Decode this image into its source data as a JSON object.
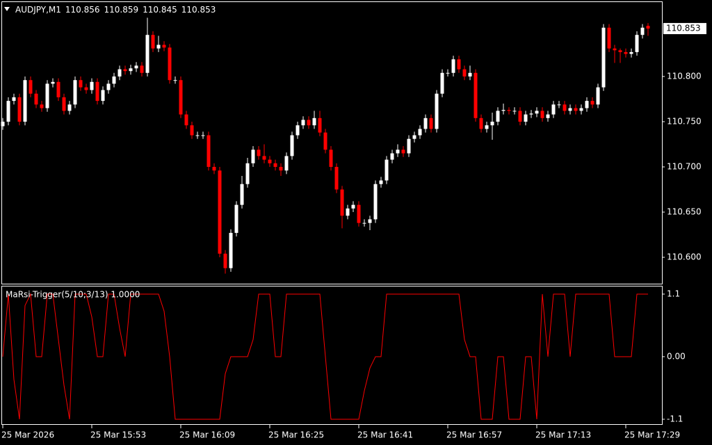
{
  "chart_data": [
    {
      "type": "candlestick",
      "title": "AUDJPY,M1",
      "last_ohlc": [
        110.856,
        110.859,
        110.845,
        110.853
      ],
      "current_price": 110.853,
      "up_color": "#ffffff",
      "down_color": "#ff0000",
      "ylim": [
        110.5708,
        110.8823
      ],
      "yticks": [
        {
          "value": 110.6,
          "label": "110.600"
        },
        {
          "value": 110.65,
          "label": "110.650"
        },
        {
          "value": 110.7,
          "label": "110.700"
        },
        {
          "value": 110.75,
          "label": "110.750"
        },
        {
          "value": 110.8,
          "label": "110.800"
        }
      ],
      "categories": [
        "25 Mar 2026",
        null,
        null,
        null,
        null,
        null,
        null,
        null,
        null,
        null,
        null,
        null,
        null,
        null,
        null,
        null,
        "25 Mar 15:53",
        null,
        null,
        null,
        null,
        null,
        null,
        null,
        null,
        null,
        null,
        null,
        null,
        null,
        null,
        null,
        "25 Mar 16:09",
        null,
        null,
        null,
        null,
        null,
        null,
        null,
        null,
        null,
        null,
        null,
        null,
        null,
        null,
        null,
        "25 Mar 16:25",
        null,
        null,
        null,
        null,
        null,
        null,
        null,
        null,
        null,
        null,
        null,
        null,
        null,
        null,
        null,
        "25 Mar 16:41",
        null,
        null,
        null,
        null,
        null,
        null,
        null,
        null,
        null,
        null,
        null,
        null,
        null,
        null,
        null,
        "25 Mar 16:57",
        null,
        null,
        null,
        null,
        null,
        null,
        null,
        null,
        null,
        null,
        null,
        null,
        null,
        null,
        null,
        "25 Mar 17:13",
        null,
        null,
        null,
        null,
        null,
        null,
        null,
        null,
        null,
        null,
        null,
        null,
        null,
        null,
        null,
        "25 Mar 17:29",
        null,
        null,
        null,
        null
      ],
      "open": [
        110.745,
        110.75,
        110.773,
        110.777,
        110.75,
        110.796,
        110.781,
        110.769,
        110.765,
        110.792,
        110.794,
        110.777,
        110.762,
        110.769,
        110.796,
        110.788,
        110.785,
        110.794,
        110.773,
        110.785,
        110.792,
        110.8,
        110.808,
        110.806,
        110.809,
        110.812,
        110.804,
        110.846,
        110.831,
        110.835,
        110.832,
        110.796,
        110.796,
        110.758,
        110.746,
        110.735,
        110.735,
        110.735,
        110.7,
        110.696,
        110.604,
        110.588,
        110.627,
        110.658,
        110.681,
        110.704,
        110.719,
        110.712,
        110.708,
        110.704,
        110.7,
        110.696,
        110.712,
        110.735,
        110.746,
        110.752,
        110.746,
        110.754,
        110.738,
        110.719,
        110.7,
        110.675,
        110.646,
        110.654,
        110.658,
        110.638,
        110.638,
        110.642,
        110.681,
        110.685,
        110.708,
        110.715,
        110.719,
        110.715,
        110.731,
        110.735,
        110.742,
        110.754,
        110.742,
        110.781,
        110.804,
        110.804,
        110.819,
        110.808,
        110.8,
        110.804,
        110.754,
        110.742,
        110.746,
        110.75,
        110.762,
        110.763,
        110.762,
        110.762,
        110.75,
        110.758,
        110.759,
        110.762,
        110.754,
        110.758,
        110.769,
        110.769,
        110.762,
        110.765,
        110.762,
        110.765,
        110.773,
        110.769,
        110.788,
        110.854,
        110.831,
        110.829,
        110.827,
        110.825,
        110.827,
        110.846,
        110.856
      ],
      "high": [
        110.754,
        110.777,
        110.781,
        110.781,
        110.8,
        110.8,
        110.785,
        110.773,
        110.796,
        110.798,
        110.798,
        110.781,
        110.773,
        110.8,
        110.8,
        110.792,
        110.798,
        110.798,
        110.789,
        110.796,
        110.804,
        110.812,
        110.812,
        110.813,
        110.816,
        110.816,
        110.865,
        110.85,
        110.845,
        110.839,
        110.836,
        110.8,
        110.8,
        110.762,
        110.75,
        110.739,
        110.739,
        110.739,
        110.704,
        110.7,
        110.608,
        110.631,
        110.662,
        110.69,
        110.71,
        110.723,
        110.723,
        110.725,
        110.712,
        110.708,
        110.704,
        110.716,
        110.739,
        110.75,
        110.756,
        110.756,
        110.762,
        110.762,
        110.742,
        110.723,
        110.704,
        110.679,
        110.658,
        110.662,
        110.662,
        110.642,
        110.646,
        110.685,
        110.689,
        110.712,
        110.719,
        110.725,
        110.723,
        110.735,
        110.739,
        110.746,
        110.758,
        110.758,
        110.785,
        110.808,
        110.808,
        110.823,
        110.823,
        110.812,
        110.812,
        110.808,
        110.758,
        110.75,
        110.76,
        110.766,
        110.77,
        110.766,
        110.766,
        110.766,
        110.762,
        110.763,
        110.766,
        110.766,
        110.762,
        110.773,
        110.773,
        110.773,
        110.769,
        110.769,
        110.769,
        110.777,
        110.777,
        110.792,
        110.858,
        110.858,
        110.835,
        110.831,
        110.831,
        110.831,
        110.85,
        110.858,
        110.859
      ],
      "low": [
        110.741,
        110.746,
        110.769,
        110.746,
        110.746,
        110.777,
        110.765,
        110.761,
        110.761,
        110.788,
        110.773,
        110.758,
        110.758,
        110.765,
        110.784,
        110.781,
        110.781,
        110.769,
        110.769,
        110.781,
        110.788,
        110.796,
        110.802,
        110.802,
        110.805,
        110.8,
        110.8,
        110.827,
        110.827,
        110.828,
        110.792,
        110.792,
        110.754,
        110.742,
        110.731,
        110.731,
        110.731,
        110.696,
        110.692,
        110.6,
        110.582,
        110.584,
        110.623,
        110.654,
        110.677,
        110.7,
        110.708,
        110.704,
        110.7,
        110.696,
        110.69,
        110.692,
        110.708,
        110.731,
        110.742,
        110.742,
        110.742,
        110.734,
        110.715,
        110.696,
        110.671,
        110.632,
        110.642,
        110.65,
        110.634,
        110.634,
        110.63,
        110.638,
        110.677,
        110.681,
        110.704,
        110.711,
        110.711,
        110.711,
        110.727,
        110.731,
        110.738,
        110.738,
        110.738,
        110.777,
        110.8,
        110.8,
        110.804,
        110.796,
        110.796,
        110.75,
        110.738,
        110.738,
        110.73,
        110.746,
        110.758,
        110.758,
        110.758,
        110.746,
        110.746,
        110.754,
        110.755,
        110.75,
        110.75,
        110.754,
        110.765,
        110.758,
        110.758,
        110.758,
        110.758,
        110.761,
        110.765,
        110.765,
        110.784,
        110.827,
        110.815,
        110.815,
        110.821,
        110.821,
        110.823,
        110.842,
        110.845
      ],
      "close": [
        110.75,
        110.773,
        110.777,
        110.75,
        110.796,
        110.781,
        110.769,
        110.765,
        110.792,
        110.794,
        110.777,
        110.762,
        110.769,
        110.796,
        110.788,
        110.785,
        110.794,
        110.773,
        110.785,
        110.792,
        110.8,
        110.808,
        110.806,
        110.809,
        110.812,
        110.804,
        110.846,
        110.831,
        110.835,
        110.832,
        110.796,
        110.796,
        110.758,
        110.746,
        110.735,
        110.735,
        110.735,
        110.7,
        110.696,
        110.604,
        110.588,
        110.627,
        110.658,
        110.681,
        110.704,
        110.719,
        110.712,
        110.708,
        110.704,
        110.7,
        110.696,
        110.712,
        110.735,
        110.746,
        110.752,
        110.746,
        110.754,
        110.738,
        110.719,
        110.7,
        110.675,
        110.646,
        110.654,
        110.658,
        110.638,
        110.638,
        110.642,
        110.681,
        110.685,
        110.708,
        110.715,
        110.719,
        110.715,
        110.731,
        110.735,
        110.742,
        110.754,
        110.742,
        110.781,
        110.804,
        110.804,
        110.819,
        110.808,
        110.8,
        110.804,
        110.754,
        110.742,
        110.746,
        110.75,
        110.762,
        110.763,
        110.762,
        110.762,
        110.75,
        110.758,
        110.759,
        110.762,
        110.754,
        110.758,
        110.769,
        110.769,
        110.762,
        110.765,
        110.762,
        110.765,
        110.773,
        110.769,
        110.788,
        110.854,
        110.831,
        110.829,
        110.827,
        110.825,
        110.827,
        110.846,
        110.854,
        110.853
      ]
    },
    {
      "type": "line",
      "title": "MaRsi-Trigger(5/10;3/13) 1.0000",
      "color": "#ff0000",
      "ylim": [
        -1.186,
        1.234
      ],
      "yticks": [
        1.1,
        {
          "value": 0,
          "label": "0.00"
        },
        -1.1
      ],
      "values": [
        0,
        1.1,
        -0.4,
        -1.1,
        0.9,
        1.1,
        0,
        0,
        1.1,
        1.1,
        0.3,
        -0.5,
        -1.1,
        1.1,
        1.1,
        1.1,
        0.7,
        0,
        0,
        1.1,
        1.1,
        0.5,
        0,
        1.1,
        1.1,
        1.1,
        1.1,
        1.1,
        1.1,
        0.8,
        0,
        -1.1,
        -1.1,
        -1.1,
        -1.1,
        -1.1,
        -1.1,
        -1.1,
        -1.1,
        -1.1,
        -0.3,
        0,
        0,
        0,
        0,
        0.3,
        1.1,
        1.1,
        1.1,
        0,
        0,
        1.1,
        1.1,
        1.1,
        1.1,
        1.1,
        1.1,
        1.1,
        0,
        -1.1,
        -1.1,
        -1.1,
        -1.1,
        -1.1,
        -1.1,
        -0.6,
        -0.2,
        0,
        0,
        1.1,
        1.1,
        1.1,
        1.1,
        1.1,
        1.1,
        1.1,
        1.1,
        1.1,
        1.1,
        1.1,
        1.1,
        1.1,
        1.1,
        0.3,
        0,
        0,
        -1.1,
        -1.1,
        -1.1,
        0,
        0,
        -1.1,
        -1.1,
        -1.1,
        0,
        0,
        -1.1,
        1.1,
        0,
        1.1,
        1.1,
        1.1,
        0,
        1.1,
        1.1,
        1.1,
        1.1,
        1.1,
        1.1,
        1.1,
        0,
        0,
        0,
        0,
        1.1,
        1.1,
        1.1
      ]
    }
  ]
}
